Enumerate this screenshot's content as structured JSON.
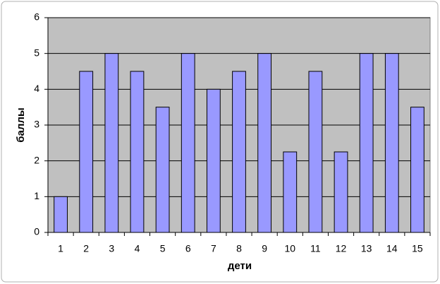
{
  "chart_data": {
    "type": "bar",
    "x_label": "дети",
    "y_label": "баллы",
    "categories": [
      "1",
      "2",
      "3",
      "4",
      "5",
      "6",
      "7",
      "8",
      "9",
      "10",
      "11",
      "12",
      "13",
      "14",
      "15"
    ],
    "values": [
      1,
      4.5,
      5,
      4.5,
      3.5,
      5,
      4,
      4.5,
      5,
      2.25,
      4.5,
      2.25,
      5,
      5,
      3.5
    ],
    "color": "#9999ff",
    "ylim": [
      0,
      6
    ],
    "yticks": [
      0,
      1,
      2,
      3,
      4,
      5,
      6
    ],
    "grid": true
  }
}
